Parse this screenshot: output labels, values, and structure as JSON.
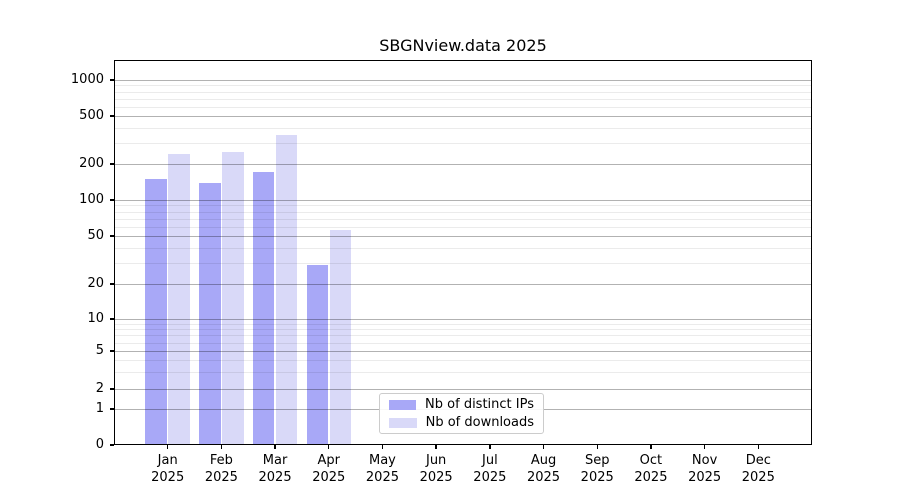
{
  "title": "SBGNview.data 2025",
  "chart_data": {
    "type": "bar",
    "title": "SBGNview.data 2025",
    "scale": "log-like (symlog with 0 baseline)",
    "categories": [
      "Jan",
      "Feb",
      "Mar",
      "Apr",
      "May",
      "Jun",
      "Jul",
      "Aug",
      "Sep",
      "Oct",
      "Nov",
      "Dec"
    ],
    "category_year": "2025",
    "series": [
      {
        "name": "Nb of distinct IPs",
        "color": "#a8a8f7",
        "values": [
          150,
          140,
          170,
          29,
          null,
          null,
          null,
          null,
          null,
          null,
          null,
          null
        ]
      },
      {
        "name": "Nb of downloads",
        "color": "#d9d9f8",
        "values": [
          240,
          250,
          350,
          56,
          null,
          null,
          null,
          null,
          null,
          null,
          null,
          null
        ]
      }
    ],
    "y_ticks": [
      0,
      1,
      2,
      5,
      10,
      20,
      50,
      100,
      200,
      500,
      1000
    ],
    "ylim": [
      0,
      1500
    ],
    "grid": true,
    "legend": {
      "position": "bottom-center",
      "entries": [
        "Nb of distinct IPs",
        "Nb of downloads"
      ]
    }
  }
}
